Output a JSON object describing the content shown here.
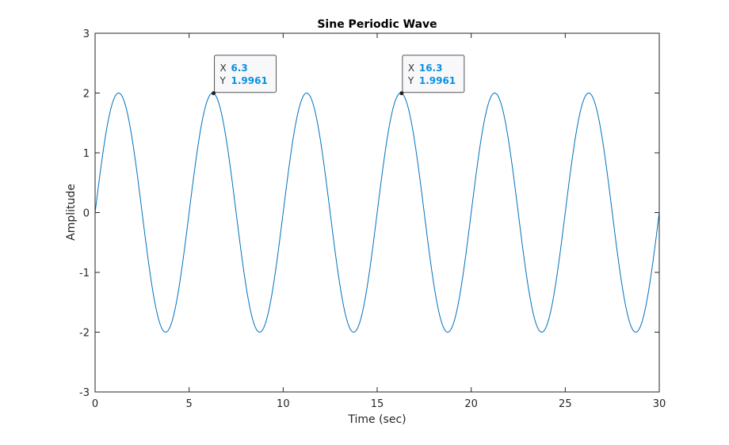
{
  "chart_data": {
    "type": "line",
    "title": "Sine Periodic Wave",
    "xlabel": "Time (sec)",
    "ylabel": "Amplitude",
    "xlim": [
      0,
      30
    ],
    "ylim": [
      -3,
      3
    ],
    "xticks": [
      0,
      5,
      10,
      15,
      20,
      25,
      30
    ],
    "yticks": [
      -3,
      -2,
      -1,
      0,
      1,
      2,
      3
    ],
    "grid": false,
    "series": [
      {
        "function": "y = 2*sin(2*pi*x/5)",
        "amplitude": 2,
        "period": 5,
        "x_start": 0,
        "x_end": 30,
        "color": "#0072BD",
        "peaks_x": [
          1.25,
          6.25,
          11.25,
          16.25,
          21.25,
          26.25
        ],
        "troughs_x": [
          3.75,
          8.75,
          13.75,
          18.75,
          23.75,
          28.75
        ]
      }
    ],
    "datatips": [
      {
        "x_label": "X",
        "x_value": "6.3",
        "y_label": "Y",
        "y_value": "1.9961",
        "x": 6.3,
        "y": 1.9961
      },
      {
        "x_label": "X",
        "x_value": "16.3",
        "y_label": "Y",
        "y_value": "1.9961",
        "x": 16.3,
        "y": 1.9961
      }
    ],
    "colors": {
      "line": "#0072BD",
      "datatip_value": "#0a90e0",
      "axes": "#262626"
    }
  }
}
